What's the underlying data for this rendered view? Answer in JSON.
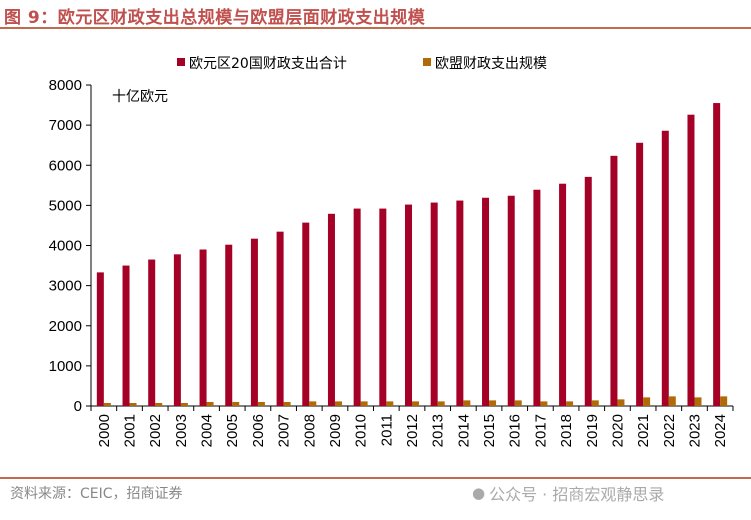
{
  "title": "图 9：欧元区财政支出总规模与欧盟层面财政支出规模",
  "source": "资料来源：CEIC，招商证券",
  "watermark": "公众号 · 招商宏观静思录",
  "chart_data": {
    "type": "bar",
    "title": "",
    "unit_label": "十亿欧元",
    "xlabel": "",
    "ylabel": "",
    "ylim": [
      0,
      8000
    ],
    "yticks": [
      0,
      1000,
      2000,
      3000,
      4000,
      5000,
      6000,
      7000,
      8000
    ],
    "grid": false,
    "legend": "top",
    "categories": [
      "2000",
      "2001",
      "2002",
      "2003",
      "2004",
      "2005",
      "2006",
      "2007",
      "2008",
      "2009",
      "2010",
      "2011",
      "2012",
      "2013",
      "2014",
      "2015",
      "2016",
      "2017",
      "2018",
      "2019",
      "2020",
      "2021",
      "2022",
      "2023",
      "2024"
    ],
    "series": [
      {
        "name": "欧元区20国财政支出合计",
        "color": "#a50026",
        "values": [
          3330,
          3500,
          3650,
          3780,
          3900,
          4020,
          4170,
          4345,
          4570,
          4790,
          4920,
          4920,
          5020,
          5070,
          5120,
          5190,
          5240,
          5390,
          5540,
          5710,
          6235,
          6560,
          6860,
          7260,
          7550
        ]
      },
      {
        "name": "欧盟财政支出规模",
        "color": "#b06a08",
        "values": [
          75,
          75,
          75,
          75,
          100,
          100,
          100,
          100,
          115,
          115,
          115,
          115,
          115,
          115,
          140,
          140,
          140,
          115,
          115,
          140,
          165,
          215,
          240,
          215,
          240
        ]
      }
    ]
  }
}
